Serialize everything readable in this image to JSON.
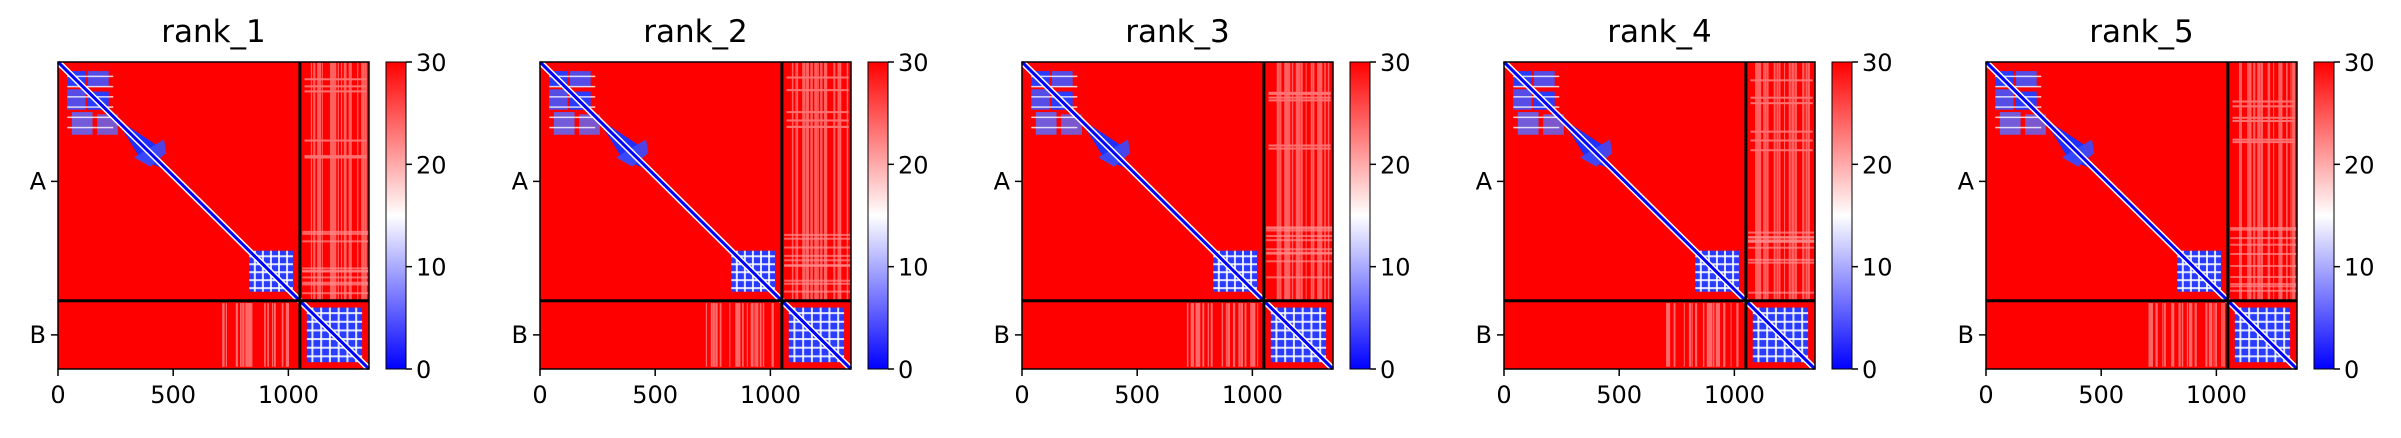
{
  "chart_data": {
    "type": "heatmap",
    "x_ticks": [
      0,
      500,
      1000
    ],
    "x_range": [
      0,
      1350
    ],
    "y_range": [
      0,
      1350
    ],
    "chain_labels": [
      "A",
      "B"
    ],
    "chain_lengths": [
      1050,
      300
    ],
    "colorbar": {
      "min": 0,
      "max": 30,
      "ticks": [
        0,
        10,
        20,
        30
      ],
      "colormap": "bwr"
    },
    "colors": {
      "low": "#0000ff",
      "mid": "#ffffff",
      "high": "#ff0000",
      "boundary": "#000000"
    },
    "panels": [
      {
        "title": "rank_1"
      },
      {
        "title": "rank_2"
      },
      {
        "title": "rank_3"
      },
      {
        "title": "rank_4"
      },
      {
        "title": "rank_5"
      }
    ]
  }
}
